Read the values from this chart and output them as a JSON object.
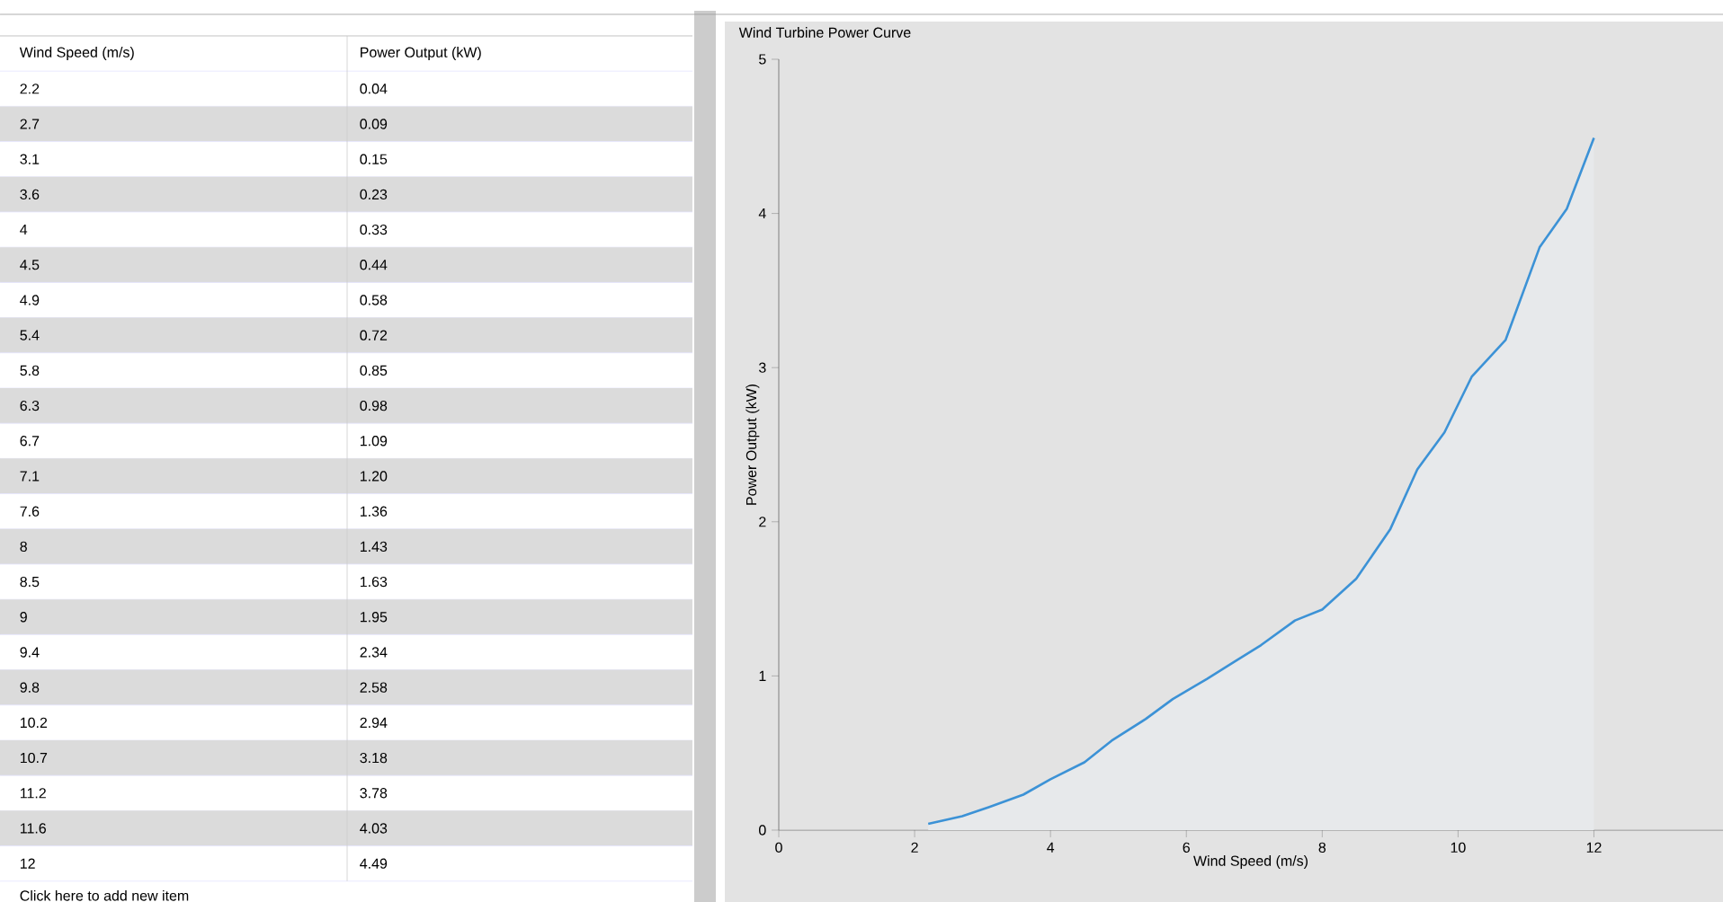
{
  "chart_data": [
    {
      "type": "other",
      "annotations": [
        "Wind Speed (m/s)",
        "Power Output (kW)",
        "2.2",
        "0.04",
        "2.7",
        "0.09",
        "3.1",
        "0.15",
        "3.6",
        "0.23",
        "4",
        "0.33",
        "4.5",
        "0.44",
        "4.9",
        "0.58",
        "5.4",
        "0.72",
        "5.8",
        "0.85",
        "6.3",
        "0.98",
        "6.7",
        "1.09",
        "7.1",
        "1.20",
        "7.6",
        "1.36",
        "8",
        "1.43",
        "8.5",
        "1.63",
        "9",
        "1.95",
        "9.4",
        "2.34",
        "9.8",
        "2.58",
        "10.2",
        "2.94",
        "10.7",
        "3.18",
        "11.2",
        "3.78",
        "11.6",
        "4.03",
        "12",
        "4.49",
        "Click here to add new item"
      ]
    },
    {
      "type": "area",
      "title": "Wind Turbine Power Curve",
      "xlabel": "Wind Speed (m/s)",
      "ylabel": "Power Output (kW)",
      "x": [
        2.2,
        2.7,
        3.1,
        3.6,
        4,
        4.5,
        4.9,
        5.4,
        5.8,
        6.3,
        6.7,
        7.1,
        7.6,
        8,
        8.5,
        9,
        9.4,
        9.8,
        10.2,
        10.7,
        11.2,
        11.6,
        12
      ],
      "values": [
        0.04,
        0.09,
        0.15,
        0.23,
        0.33,
        0.44,
        0.58,
        0.72,
        0.85,
        0.98,
        1.09,
        1.2,
        1.36,
        1.43,
        1.63,
        1.95,
        2.34,
        2.58,
        2.94,
        3.18,
        3.78,
        4.03,
        4.49
      ],
      "color": "#3c92d6",
      "xlim": [
        0,
        13.9
      ],
      "ylim": [
        0,
        5
      ],
      "xticks": [
        0,
        2,
        4,
        6,
        8,
        10,
        12
      ],
      "yticks": [
        0,
        1,
        2,
        3,
        4,
        5
      ]
    }
  ]
}
